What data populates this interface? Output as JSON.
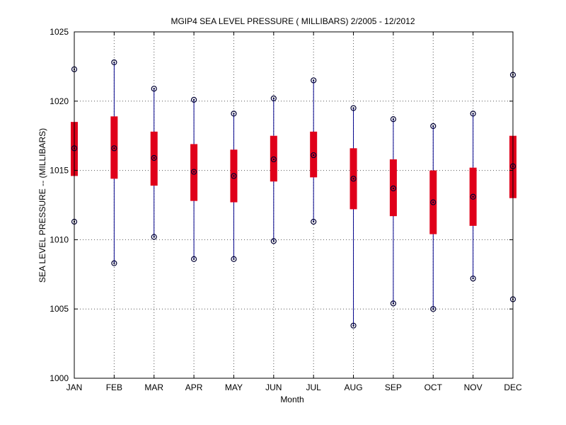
{
  "chart_data": {
    "type": "box",
    "title": "MGIP4  SEA LEVEL PRESSURE ( MILLIBARS) 2/2005 - 12/2012",
    "xlabel": "Month",
    "ylabel": "SEA LEVEL PRESSURE -- (MILLIBARS)",
    "ylim": [
      1000,
      1025
    ],
    "yticks": [
      1000,
      1005,
      1010,
      1015,
      1020,
      1025
    ],
    "grid": true,
    "colors": {
      "whisker": "#00008b",
      "box": "#e0001a",
      "marker": "#000033"
    },
    "categories": [
      "JAN",
      "FEB",
      "MAR",
      "APR",
      "MAY",
      "JUN",
      "JUL",
      "AUG",
      "SEP",
      "OCT",
      "NOV",
      "DEC"
    ],
    "boxes": [
      {
        "min": 1011.3,
        "q1": 1014.6,
        "median": 1016.6,
        "q3": 1018.5,
        "max": 1022.3
      },
      {
        "min": 1008.3,
        "q1": 1014.4,
        "median": 1016.6,
        "q3": 1018.9,
        "max": 1022.8
      },
      {
        "min": 1010.2,
        "q1": 1013.9,
        "median": 1015.9,
        "q3": 1017.8,
        "max": 1020.9
      },
      {
        "min": 1008.6,
        "q1": 1012.8,
        "median": 1014.9,
        "q3": 1016.9,
        "max": 1020.1
      },
      {
        "min": 1008.6,
        "q1": 1012.7,
        "median": 1014.6,
        "q3": 1016.5,
        "max": 1019.1
      },
      {
        "min": 1009.9,
        "q1": 1014.2,
        "median": 1015.8,
        "q3": 1017.5,
        "max": 1020.2
      },
      {
        "min": 1011.3,
        "q1": 1014.5,
        "median": 1016.1,
        "q3": 1017.8,
        "max": 1021.5
      },
      {
        "min": 1003.8,
        "q1": 1012.2,
        "median": 1014.4,
        "q3": 1016.6,
        "max": 1019.5
      },
      {
        "min": 1005.4,
        "q1": 1011.7,
        "median": 1013.7,
        "q3": 1015.8,
        "max": 1018.7
      },
      {
        "min": 1005.0,
        "q1": 1010.4,
        "median": 1012.7,
        "q3": 1015.0,
        "max": 1018.2
      },
      {
        "min": 1007.2,
        "q1": 1011.0,
        "median": 1013.1,
        "q3": 1015.2,
        "max": 1019.1
      },
      {
        "min": 1005.7,
        "q1": 1013.0,
        "median": 1015.3,
        "q3": 1017.5,
        "max": 1021.9
      }
    ]
  }
}
